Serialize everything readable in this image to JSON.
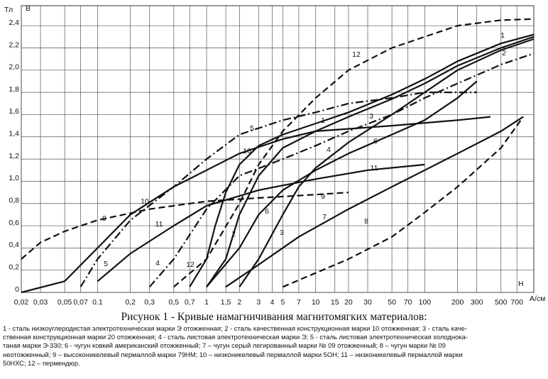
{
  "chart_data": {
    "type": "line",
    "title": "Рисунок 1 - Кривые намагничивания магнитомягких материалов:",
    "caption_lines": [
      "1 - сталь низкоуглеродистая электротехническая марки Э отожженная; 2 - сталь качественная конструкционная марки 10 отожженная; 3 - сталь каче-",
      "ственная конструкционная марки 20 отожженная; 4 - сталь листовая электротехническая марки Э; 5 -  сталь листовая электротехническая холоднока-",
      "таная марки Э-330; 6 - чугун ковкий американский отожженный; 7 – чугун серый легированный марки № 09 отожженный; 8 – чугун марки № 09",
      "неотожженный; 9 – высоконикелевый пермаллой марки 79НМ; 10 – низконикелевый пермаллой марки 5ОН; 11 – низконикелевый пермаллой марки",
      "50НХС; 12 – пермендюр."
    ],
    "y_unit": "Тл",
    "y_label": "B",
    "x_label": "H",
    "x_unit": "А/см",
    "x_log": true,
    "grid": true,
    "xlim": [
      0.02,
      1000
    ],
    "ylim": [
      0,
      2.58
    ],
    "xticks": [
      {
        "value": 0.02,
        "label": "0,02"
      },
      {
        "value": 0.03,
        "label": "0,03"
      },
      {
        "value": 0.05,
        "label": "0,05"
      },
      {
        "value": 0.07,
        "label": "0,07"
      },
      0.1,
      {
        "value": 0.2,
        "label": "0,2"
      },
      {
        "value": 0.3,
        "label": "0,3"
      },
      {
        "value": 0.5,
        "label": "0,5"
      },
      {
        "value": 0.7,
        "label": "0,7"
      },
      1,
      {
        "value": 1.5,
        "label": "1,5"
      },
      2,
      3,
      4,
      5,
      7,
      10,
      15,
      20,
      30,
      50,
      70,
      100,
      200,
      300,
      500,
      700
    ],
    "yticks": [
      0,
      {
        "value": 0.2,
        "label": "0,2"
      },
      {
        "value": 0.4,
        "label": "0,4"
      },
      {
        "value": 0.6,
        "label": "0,6"
      },
      {
        "value": 0.8,
        "label": "0,8"
      },
      {
        "value": 1.0,
        "label": "1,0"
      },
      {
        "value": 1.2,
        "label": "1,2"
      },
      {
        "value": 1.4,
        "label": "1,4"
      },
      {
        "value": 1.6,
        "label": "1,6"
      },
      {
        "value": 1.8,
        "label": "1,8"
      },
      {
        "value": 2.0,
        "label": "2,0"
      },
      {
        "value": 2.2,
        "label": "2,2"
      },
      {
        "value": 2.4,
        "label": "2,4"
      }
    ],
    "series": [
      {
        "name": "1",
        "color": "#111111",
        "dash": "solid",
        "x": [
          0.7,
          1,
          1.2,
          1.5,
          2,
          3,
          5,
          10,
          20,
          50,
          100,
          200,
          500,
          1000
        ],
        "values": [
          0.05,
          0.3,
          0.6,
          0.9,
          1.15,
          1.32,
          1.42,
          1.52,
          1.62,
          1.78,
          1.92,
          2.08,
          2.24,
          2.32
        ]
      },
      {
        "name": "2",
        "color": "#111111",
        "dash": "solid",
        "x": [
          1,
          1.5,
          2,
          3,
          5,
          10,
          20,
          50,
          100,
          200,
          500,
          1000
        ],
        "values": [
          0.05,
          0.3,
          0.7,
          1.05,
          1.3,
          1.45,
          1.58,
          1.74,
          1.88,
          2.04,
          2.2,
          2.3
        ]
      },
      {
        "name": "3",
        "color": "#111111",
        "dash": "solid",
        "x": [
          2,
          3,
          5,
          7,
          10,
          20,
          50,
          100,
          200,
          500,
          1000
        ],
        "values": [
          0.05,
          0.3,
          0.7,
          0.95,
          1.12,
          1.35,
          1.6,
          1.8,
          2.0,
          2.18,
          2.28
        ]
      },
      {
        "name": "4",
        "color": "#111111",
        "dash": "dashdot",
        "x": [
          0.3,
          0.5,
          1,
          2,
          5,
          10,
          20,
          50,
          100,
          200,
          500,
          1000
        ],
        "values": [
          0.05,
          0.3,
          0.75,
          1.05,
          1.2,
          1.32,
          1.45,
          1.6,
          1.75,
          1.88,
          2.05,
          2.15
        ]
      },
      {
        "name": "5",
        "color": "#111111",
        "dash": "dashdot",
        "x": [
          0.07,
          0.1,
          0.2,
          0.5,
          1,
          2,
          5,
          10,
          20,
          50,
          100,
          300
        ],
        "values": [
          0.05,
          0.3,
          0.65,
          0.95,
          1.2,
          1.42,
          1.55,
          1.62,
          1.7,
          1.75,
          1.8,
          1.8
        ]
      },
      {
        "name": "6",
        "color": "#111111",
        "dash": "solid",
        "x": [
          1,
          2,
          3,
          5,
          10,
          20,
          50,
          100,
          200,
          300
        ],
        "values": [
          0.05,
          0.4,
          0.7,
          0.92,
          1.1,
          1.25,
          1.42,
          1.55,
          1.75,
          1.9
        ]
      },
      {
        "name": "7",
        "color": "#111111",
        "dash": "solid",
        "x": [
          1.5,
          3,
          7,
          20,
          50,
          100,
          200,
          500,
          800
        ],
        "values": [
          0.05,
          0.25,
          0.5,
          0.75,
          0.95,
          1.1,
          1.25,
          1.45,
          1.58
        ]
      },
      {
        "name": "8",
        "color": "#111111",
        "dash": "dashed",
        "x": [
          5,
          20,
          50,
          100,
          200,
          500,
          800
        ],
        "values": [
          0.05,
          0.3,
          0.5,
          0.72,
          0.95,
          1.3,
          1.58
        ]
      },
      {
        "name": "9",
        "color": "#111111",
        "dash": "dashed",
        "x": [
          0.02,
          0.03,
          0.05,
          0.1,
          0.3,
          1,
          3,
          10,
          20
        ],
        "values": [
          0.3,
          0.45,
          0.55,
          0.65,
          0.75,
          0.82,
          0.85,
          0.88,
          0.9
        ]
      },
      {
        "name": "10",
        "color": "#111111",
        "dash": "solid",
        "x": [
          0.02,
          0.05,
          0.1,
          0.2,
          0.5,
          1,
          2,
          5,
          10,
          50,
          200,
          400
        ],
        "values": [
          0,
          0.1,
          0.4,
          0.7,
          0.95,
          1.1,
          1.25,
          1.38,
          1.45,
          1.5,
          1.55,
          1.58
        ]
      },
      {
        "name": "11",
        "color": "#111111",
        "dash": "solid",
        "x": [
          0.1,
          0.2,
          0.5,
          1,
          3,
          10,
          30,
          100
        ],
        "values": [
          0.1,
          0.35,
          0.6,
          0.78,
          0.92,
          1.02,
          1.1,
          1.15
        ]
      },
      {
        "name": "12",
        "color": "#111111",
        "dash": "dashed",
        "x": [
          0.5,
          1,
          2,
          3,
          5,
          10,
          20,
          50,
          100,
          200,
          500,
          1000
        ],
        "values": [
          0.05,
          0.3,
          0.8,
          1.15,
          1.45,
          1.75,
          2.0,
          2.2,
          2.3,
          2.4,
          2.45,
          2.46
        ]
      }
    ]
  }
}
